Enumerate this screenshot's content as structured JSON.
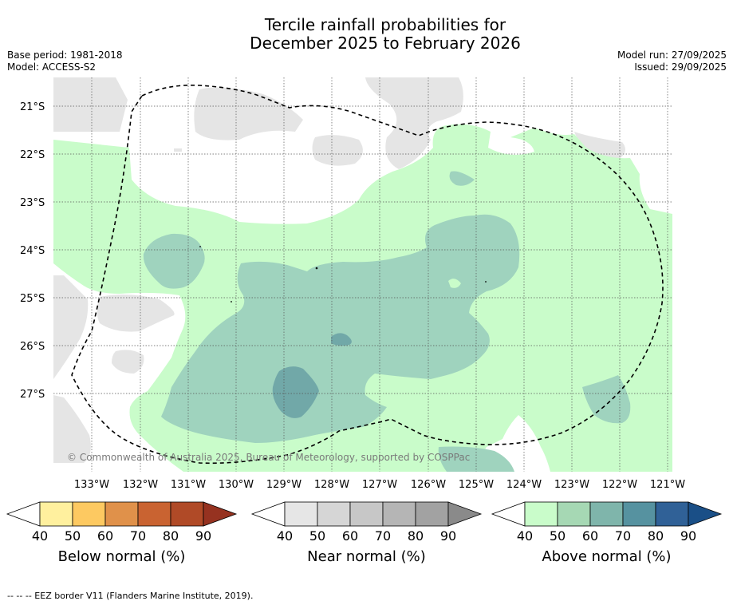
{
  "title_line1": "Tercile rainfall probabilities for",
  "title_line2": "December 2025 to February 2026",
  "meta_left": {
    "base_period": "Base period: 1981-2018",
    "model": "Model: ACCESS-S2"
  },
  "meta_right": {
    "model_run": "Model run: 27/09/2025",
    "issued": "Issued: 29/09/2025"
  },
  "copyright": "© Commonwealth of Australia 2025, Bureau of Meteorology, supported by COSPPac",
  "footnote": "--  --  -- EEZ border V11 (Flanders Marine Institute, 2019).",
  "map": {
    "lon_labels": [
      "133°W",
      "132°W",
      "131°W",
      "130°W",
      "129°W",
      "128°W",
      "127°W",
      "126°W",
      "125°W",
      "124°W",
      "123°W",
      "122°W",
      "121°W"
    ],
    "lat_labels": [
      "21°S",
      "22°S",
      "23°S",
      "24°S",
      "25°S",
      "26°S",
      "27°S"
    ]
  },
  "colorbars": [
    {
      "title": "Below normal (%)",
      "ticks": [
        "40",
        "50",
        "60",
        "70",
        "80",
        "90"
      ],
      "colors": [
        "#fff09e",
        "#fdc961",
        "#e0914a",
        "#c96331",
        "#b04a27",
        "#963220"
      ]
    },
    {
      "title": "Near normal (%)",
      "ticks": [
        "40",
        "50",
        "60",
        "70",
        "80",
        "90"
      ],
      "colors": [
        "#e6e6e6",
        "#d6d6d6",
        "#c7c7c7",
        "#b5b5b5",
        "#a2a2a2",
        "#8a8a8a"
      ]
    },
    {
      "title": "Above normal (%)",
      "ticks": [
        "40",
        "50",
        "60",
        "70",
        "80",
        "90"
      ],
      "colors": [
        "#c9fcca",
        "#a6d8b4",
        "#7fb5ab",
        "#5692a0",
        "#306197",
        "#1a4f87"
      ]
    }
  ],
  "legend_colors": {
    "above_40": "#c9fcca",
    "above_50": "#9fd3be",
    "above_60": "#71a8a8",
    "near_40": "#e5e5e5"
  }
}
